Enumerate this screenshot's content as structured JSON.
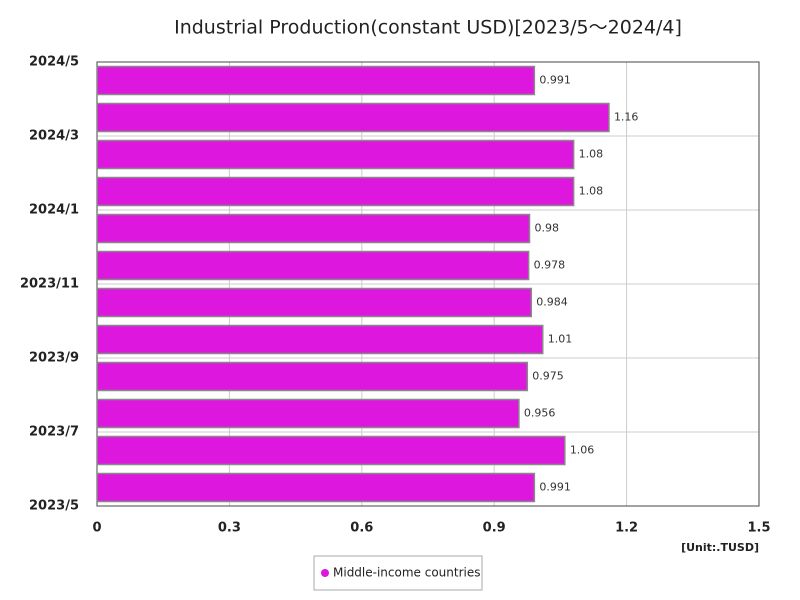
{
  "chart_data": {
    "type": "hbar",
    "title": "Industrial Production(constant USD)[2023/5～2024/4]",
    "unit_label": "[Unit:.TUSD]",
    "series": [
      {
        "name": "Middle-income countries",
        "color": "#dd17dd",
        "values": [
          0.991,
          1.06,
          0.956,
          0.975,
          1.01,
          0.984,
          0.978,
          0.98,
          1.08,
          1.08,
          1.16,
          0.991
        ]
      }
    ],
    "ytick_labels": [
      "2023/5",
      "2023/7",
      "2023/9",
      "2023/11",
      "2024/1",
      "2024/3",
      "2024/5"
    ],
    "xlim": [
      0,
      1.5
    ],
    "xticks": [
      0,
      0.3,
      0.6,
      0.9,
      1.2,
      1.5
    ],
    "grid": true,
    "legend": "bottom"
  }
}
